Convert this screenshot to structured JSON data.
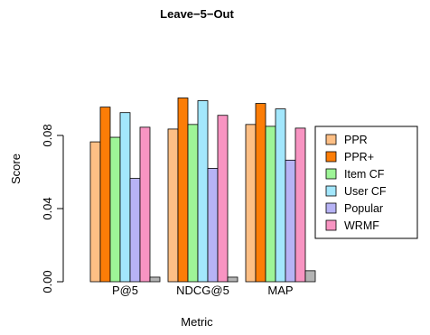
{
  "chart_data": {
    "type": "bar",
    "title": "Leave−5−Out",
    "xlabel": "Metric",
    "ylabel": "Score",
    "categories": [
      "P@5",
      "NDCG@5",
      "MAP"
    ],
    "ylim": [
      0,
      0.1
    ],
    "yticks": [
      0.0,
      0.04,
      0.08
    ],
    "ytick_labels": [
      "0.00",
      "0.04",
      "0.08"
    ],
    "legend_position": "right",
    "series": [
      {
        "name": "PPR",
        "color": "#fdbf85",
        "values": [
          0.0765,
          0.0835,
          0.086
        ]
      },
      {
        "name": "PPR+",
        "color": "#fc7d07",
        "values": [
          0.0955,
          0.1005,
          0.0975
        ]
      },
      {
        "name": "Item CF",
        "color": "#9ef597",
        "values": [
          0.079,
          0.086,
          0.085
        ]
      },
      {
        "name": "User CF",
        "color": "#a3e7fc",
        "values": [
          0.0925,
          0.099,
          0.0945
        ]
      },
      {
        "name": "Popular",
        "color": "#b7b3f5",
        "values": [
          0.0565,
          0.062,
          0.0665
        ]
      },
      {
        "name": "WRMF",
        "color": "#f894c2",
        "values": [
          0.0845,
          0.091,
          0.084
        ]
      },
      {
        "name": "",
        "color": "#b4b4b4",
        "values": [
          0.0025,
          0.0025,
          0.006
        ],
        "in_legend": false
      }
    ]
  }
}
